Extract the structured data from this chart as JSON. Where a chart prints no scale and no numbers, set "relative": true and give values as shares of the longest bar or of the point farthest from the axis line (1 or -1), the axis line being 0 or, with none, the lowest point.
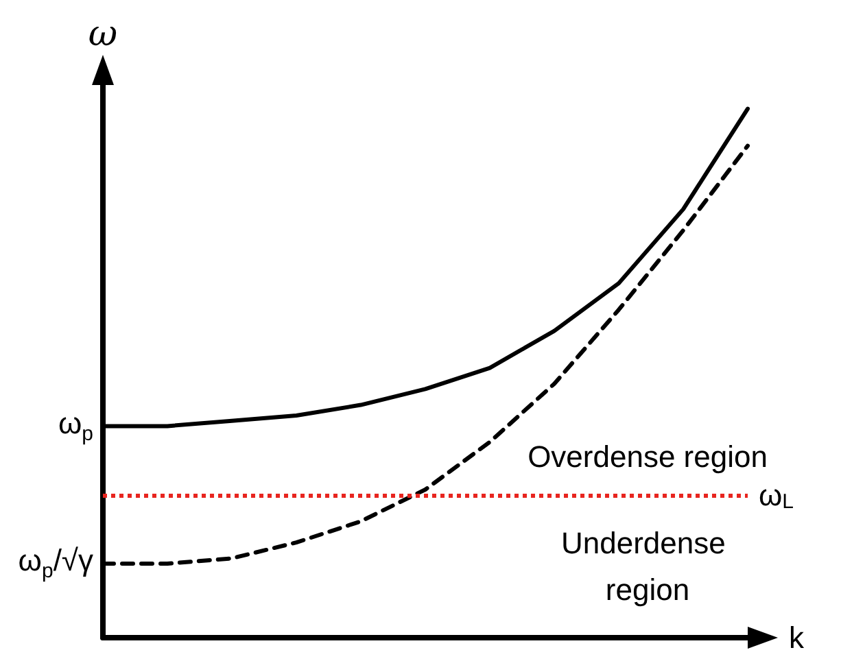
{
  "chart_data": {
    "type": "line",
    "relative": true,
    "xlabel": "k",
    "ylabel": "ω",
    "categories": [
      null,
      null,
      null,
      null,
      null,
      null,
      null,
      null,
      null,
      null,
      null
    ],
    "series": [
      {
        "color": "#000000",
        "line_style": "solid",
        "values": [
          0.4,
          0.4,
          0.41,
          0.42,
          0.44,
          0.47,
          0.51,
          0.58,
          0.67,
          0.81,
          1
        ]
      },
      {
        "color": "#000000",
        "line_style": "dashed",
        "values": [
          0.14,
          0.14,
          0.15,
          0.18,
          0.22,
          0.28,
          0.37,
          0.48,
          0.62,
          0.77,
          0.93
        ]
      }
    ],
    "ref_lines": [
      {
        "axis": "y",
        "value": 0.27,
        "label": "ω$_{L}$",
        "color": "#e8251f",
        "line_style": "dotted"
      }
    ],
    "annotations": [
      "ω$_{p}$",
      "ω$_{p}$/√γ",
      "Overdense region",
      "Underdense region"
    ],
    "marker": "none"
  }
}
